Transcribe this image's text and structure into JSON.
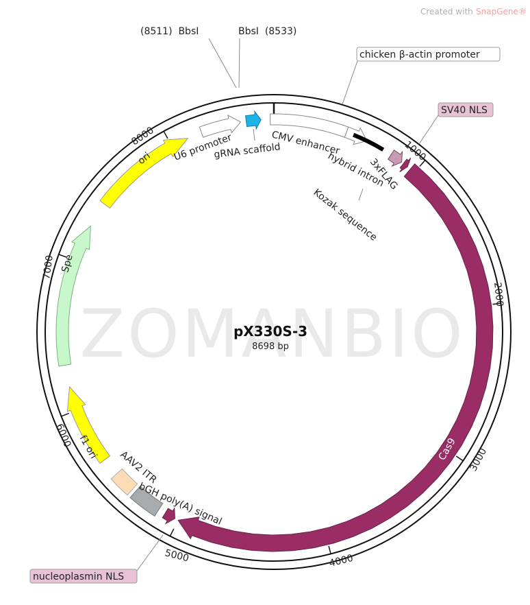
{
  "header": {
    "credit_prefix": "Created with",
    "credit_brand": "SnapGene®"
  },
  "watermark": "ZOMANBIO",
  "plasmid": {
    "name": "pX330S-3",
    "length": "8698 bp"
  },
  "sites": {
    "left": "(8511)  BbsI",
    "right": "BbsI  (8533)"
  },
  "features": {
    "chicken_beta_actin": "chicken β-actin promoter",
    "sv40_nls": "SV40 NLS",
    "cmv": "CMV enhancer",
    "u6": "U6 promoter",
    "grna": "gRNA scaffold",
    "intron": "hybrid intron",
    "flag": "3xFLAG",
    "kozak": "Kozak sequence",
    "aav2": "AAV2 ITR",
    "bgh": "bGH poly(A) signal",
    "npm_nls": "nucleoplasmin NLS",
    "cas9": "Cas9",
    "spe": "Spe",
    "ori": "ori",
    "f1": "f1 ori"
  },
  "ticks": [
    "1000",
    "2000",
    "3000",
    "4000",
    "5000",
    "6000",
    "7000",
    "8000"
  ]
}
